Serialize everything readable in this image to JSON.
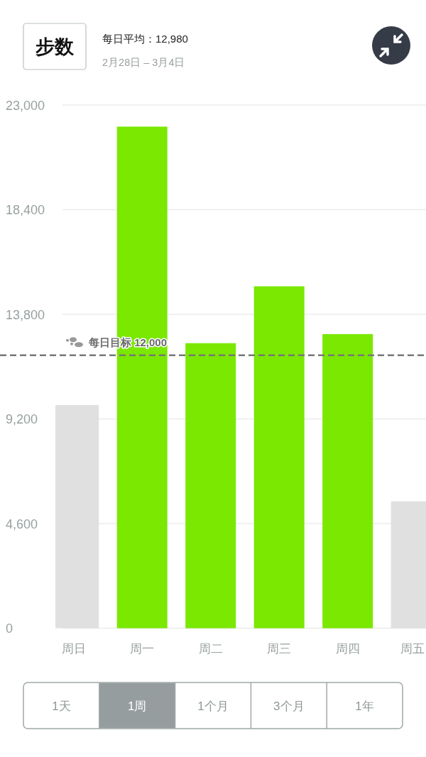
{
  "chart_data": {
    "type": "bar",
    "title": "步数",
    "subtitle": "每日平均：12,980",
    "annotations": [
      "2月28日 – 3月4日",
      "1天",
      "1周",
      "1个月",
      "3个月",
      "1年"
    ],
    "categories": [
      "周日",
      "周一",
      "周二",
      "周三",
      "周四",
      "周五"
    ],
    "values": [
      9810,
      22050,
      12530,
      15030,
      12930,
      5580
    ],
    "colors": [
      "#e0e0e0",
      "#7ae800",
      "#7ae800",
      "#7ae800",
      "#7ae800",
      "#e0e0e0"
    ],
    "ylim": [
      0,
      23000
    ],
    "yticks": [
      {
        "value": 0,
        "label": "0"
      },
      {
        "value": 4600,
        "label": "4,600"
      },
      {
        "value": 9200,
        "label": "9,200"
      },
      {
        "value": 13800,
        "label": "13,800"
      },
      {
        "value": 18400,
        "label": "18,400"
      },
      {
        "value": 23000,
        "label": "23,000"
      }
    ],
    "grid": "y",
    "ref_lines": [
      {
        "axis": "y",
        "value": 12000,
        "label": "每日目标 12,000",
        "color": "#777777",
        "line_style": "dashed"
      }
    ]
  }
}
